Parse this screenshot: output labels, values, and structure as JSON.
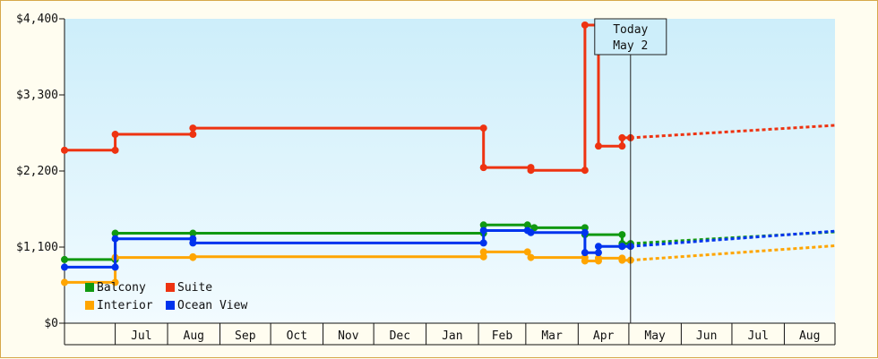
{
  "chart_data": {
    "type": "line",
    "title": "",
    "xlabel": "",
    "ylabel": "",
    "ylim": [
      0,
      4400
    ],
    "y_ticks": [
      {
        "value": 0,
        "label": "$0"
      },
      {
        "value": 1100,
        "label": "$1,100"
      },
      {
        "value": 2200,
        "label": "$2,200"
      },
      {
        "value": 3300,
        "label": "$3,300"
      },
      {
        "value": 4400,
        "label": "$4,400"
      }
    ],
    "x_axis": {
      "start": "2013-06-01",
      "end": "2014-08-31",
      "months": [
        {
          "label": "",
          "start": "2013-06-01",
          "end": "2013-07-01"
        },
        {
          "label": "Jul",
          "start": "2013-07-01",
          "end": "2013-08-01"
        },
        {
          "label": "Aug",
          "start": "2013-08-01",
          "end": "2013-09-01"
        },
        {
          "label": "Sep",
          "start": "2013-09-01",
          "end": "2013-10-01"
        },
        {
          "label": "Oct",
          "start": "2013-10-01",
          "end": "2013-11-01"
        },
        {
          "label": "Nov",
          "start": "2013-11-01",
          "end": "2013-12-01"
        },
        {
          "label": "Dec",
          "start": "2013-12-01",
          "end": "2014-01-01"
        },
        {
          "label": "Jan",
          "start": "2014-01-01",
          "end": "2014-02-01"
        },
        {
          "label": "Feb",
          "start": "2014-02-01",
          "end": "2014-03-01"
        },
        {
          "label": "Mar",
          "start": "2014-03-01",
          "end": "2014-04-01"
        },
        {
          "label": "Apr",
          "start": "2014-04-01",
          "end": "2014-05-01"
        },
        {
          "label": "May",
          "start": "2014-05-01",
          "end": "2014-06-01"
        },
        {
          "label": "Jun",
          "start": "2014-06-01",
          "end": "2014-07-01"
        },
        {
          "label": "Jul",
          "start": "2014-07-01",
          "end": "2014-08-01"
        },
        {
          "label": "Aug",
          "start": "2014-08-01",
          "end": "2014-08-31"
        }
      ]
    },
    "today": {
      "date": "2014-05-02",
      "label_line1": "Today",
      "label_line2": "May 2"
    },
    "grid": false,
    "legend_position": "bottom-left",
    "series": [
      {
        "name": "Balcony",
        "color": "#119911",
        "points": [
          [
            "2013-06-01",
            920
          ],
          [
            "2013-07-01",
            920
          ],
          [
            "2013-07-01",
            1300
          ],
          [
            "2013-08-16",
            1300
          ],
          [
            "2014-02-04",
            1300
          ],
          [
            "2014-02-04",
            1420
          ],
          [
            "2014-03-02",
            1420
          ],
          [
            "2014-03-06",
            1380
          ],
          [
            "2014-04-05",
            1380
          ],
          [
            "2014-04-05",
            1280
          ],
          [
            "2014-04-27",
            1280
          ],
          [
            "2014-04-27",
            1150
          ],
          [
            "2014-05-02",
            1150
          ]
        ],
        "forecast": [
          [
            "2014-05-02",
            1150
          ],
          [
            "2014-08-31",
            1320
          ]
        ]
      },
      {
        "name": "Suite",
        "color": "#ee3311",
        "points": [
          [
            "2013-06-01",
            2500
          ],
          [
            "2013-07-01",
            2500
          ],
          [
            "2013-07-01",
            2730
          ],
          [
            "2013-08-16",
            2730
          ],
          [
            "2013-08-16",
            2820
          ],
          [
            "2014-02-04",
            2820
          ],
          [
            "2014-02-04",
            2250
          ],
          [
            "2014-03-04",
            2250
          ],
          [
            "2014-03-04",
            2210
          ],
          [
            "2014-04-05",
            2210
          ],
          [
            "2014-04-05",
            4310
          ],
          [
            "2014-04-13",
            4310
          ],
          [
            "2014-04-13",
            2560
          ],
          [
            "2014-04-27",
            2560
          ],
          [
            "2014-04-27",
            2680
          ],
          [
            "2014-05-02",
            2680
          ]
        ],
        "forecast": [
          [
            "2014-05-02",
            2680
          ],
          [
            "2014-08-31",
            2860
          ]
        ]
      },
      {
        "name": "Interior",
        "color": "#ffa500",
        "points": [
          [
            "2013-06-01",
            590
          ],
          [
            "2013-07-01",
            590
          ],
          [
            "2013-07-01",
            950
          ],
          [
            "2013-08-16",
            950
          ],
          [
            "2013-08-16",
            960
          ],
          [
            "2014-02-04",
            960
          ],
          [
            "2014-02-04",
            1030
          ],
          [
            "2014-03-02",
            1030
          ],
          [
            "2014-03-04",
            950
          ],
          [
            "2014-04-05",
            950
          ],
          [
            "2014-04-05",
            900
          ],
          [
            "2014-04-13",
            900
          ],
          [
            "2014-04-13",
            940
          ],
          [
            "2014-04-27",
            940
          ],
          [
            "2014-04-27",
            910
          ],
          [
            "2014-05-02",
            910
          ]
        ],
        "forecast": [
          [
            "2014-05-02",
            910
          ],
          [
            "2014-08-31",
            1120
          ]
        ]
      },
      {
        "name": "Ocean View",
        "color": "#0033ee",
        "points": [
          [
            "2013-06-01",
            810
          ],
          [
            "2013-07-01",
            810
          ],
          [
            "2013-07-01",
            1220
          ],
          [
            "2013-08-16",
            1220
          ],
          [
            "2013-08-16",
            1160
          ],
          [
            "2014-02-04",
            1160
          ],
          [
            "2014-02-04",
            1340
          ],
          [
            "2014-03-02",
            1340
          ],
          [
            "2014-03-04",
            1310
          ],
          [
            "2014-04-05",
            1310
          ],
          [
            "2014-04-05",
            1020
          ],
          [
            "2014-04-13",
            1020
          ],
          [
            "2014-04-13",
            1110
          ],
          [
            "2014-04-27",
            1110
          ],
          [
            "2014-04-27",
            1110
          ],
          [
            "2014-05-02",
            1110
          ]
        ],
        "forecast": [
          [
            "2014-05-02",
            1110
          ],
          [
            "2014-08-31",
            1330
          ]
        ]
      }
    ],
    "legend": [
      {
        "name": "Balcony",
        "color": "#119911"
      },
      {
        "name": "Suite",
        "color": "#ee3311"
      },
      {
        "name": "Interior",
        "color": "#ffa500"
      },
      {
        "name": "Ocean View",
        "color": "#0033ee"
      }
    ]
  }
}
